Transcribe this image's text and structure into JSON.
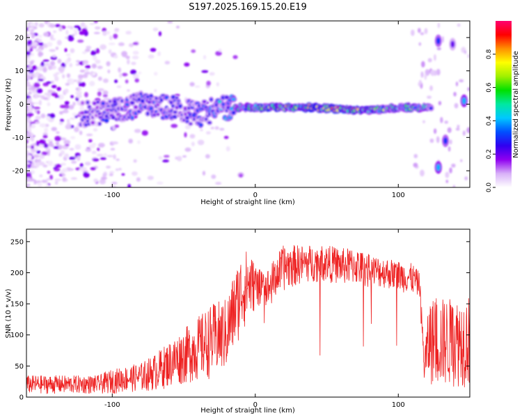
{
  "title": "S197.2025.169.15.20.E19",
  "chart_data": [
    {
      "type": "heatmap",
      "name": "spectrogram",
      "xlabel": "Height of straight line (km)",
      "ylabel": "Frequency (Hz)",
      "xlim": [
        -160,
        150
      ],
      "ylim": [
        -25,
        25
      ],
      "xticks": [
        -100,
        0,
        100
      ],
      "yticks": [
        -20,
        -10,
        0,
        10,
        20
      ],
      "colorbar": {
        "label": "Normalized spectral amplitude",
        "range": [
          0.0,
          1.0
        ],
        "ticks": [
          0.0,
          0.2,
          0.4,
          0.6,
          0.8
        ],
        "tick_labels": [
          "0.0",
          "0.2",
          "0.4",
          "0.6",
          "0.8"
        ],
        "colormap_stops": [
          "#ffffff",
          "#d8b0f8",
          "#9000f0",
          "#3000f0",
          "#0050ff",
          "#00c8ff",
          "#00e8a0",
          "#00e000",
          "#a0f000",
          "#ffff00",
          "#ff9000",
          "#ff0000",
          "#ff0070"
        ]
      },
      "ridge": {
        "description_points_x": [
          -120,
          -100,
          -80,
          -60,
          -40,
          -20,
          0,
          20,
          40,
          60,
          80,
          100,
          120
        ],
        "description_points_freq": [
          -3,
          -2,
          0,
          -1,
          -3,
          -1,
          -1,
          -1,
          -1,
          -1.5,
          -2,
          -1,
          -1
        ],
        "description_points_amp": [
          0.25,
          0.3,
          0.35,
          0.3,
          0.3,
          0.45,
          0.7,
          0.8,
          0.75,
          0.85,
          0.75,
          0.65,
          0.5
        ]
      },
      "side_blobs": [
        {
          "x": 128,
          "freq": 19,
          "amp": 0.3
        },
        {
          "x": 128,
          "freq": -19,
          "amp": 0.4
        },
        {
          "x": 133,
          "freq": -11,
          "amp": 0.3
        },
        {
          "x": 138,
          "freq": 18,
          "amp": 0.2
        },
        {
          "x": 146,
          "freq": 1,
          "amp": 0.4
        }
      ]
    },
    {
      "type": "line",
      "name": "snr",
      "xlabel": "Height of straight line (km)",
      "ylabel": "SNR (10 * v/v)",
      "xlim": [
        -160,
        150
      ],
      "ylim": [
        0,
        270
      ],
      "xticks": [
        -100,
        0,
        100
      ],
      "yticks": [
        0,
        50,
        100,
        150,
        200,
        250
      ],
      "color": "#ee2222",
      "series": [
        {
          "name": "SNR",
          "envelope_x": [
            -160,
            -130,
            -120,
            -110,
            -100,
            -90,
            -80,
            -70,
            -60,
            -50,
            -40,
            -30,
            -20,
            -15,
            -10,
            -5,
            0,
            5,
            10,
            15,
            20,
            30,
            40,
            50,
            60,
            70,
            80,
            90,
            100,
            110,
            115,
            118,
            122,
            126,
            130,
            140,
            150
          ],
          "envelope_low": [
            5,
            5,
            5,
            5,
            5,
            8,
            8,
            10,
            15,
            20,
            25,
            30,
            40,
            70,
            100,
            120,
            140,
            150,
            140,
            160,
            170,
            180,
            185,
            185,
            180,
            180,
            175,
            175,
            170,
            165,
            160,
            20,
            20,
            15,
            15,
            15,
            15
          ],
          "envelope_high": [
            35,
            35,
            35,
            35,
            45,
            50,
            55,
            70,
            90,
            110,
            130,
            150,
            160,
            200,
            230,
            240,
            215,
            200,
            210,
            230,
            245,
            245,
            245,
            245,
            240,
            240,
            230,
            225,
            220,
            215,
            200,
            80,
            160,
            160,
            160,
            160,
            165
          ]
        }
      ]
    }
  ]
}
